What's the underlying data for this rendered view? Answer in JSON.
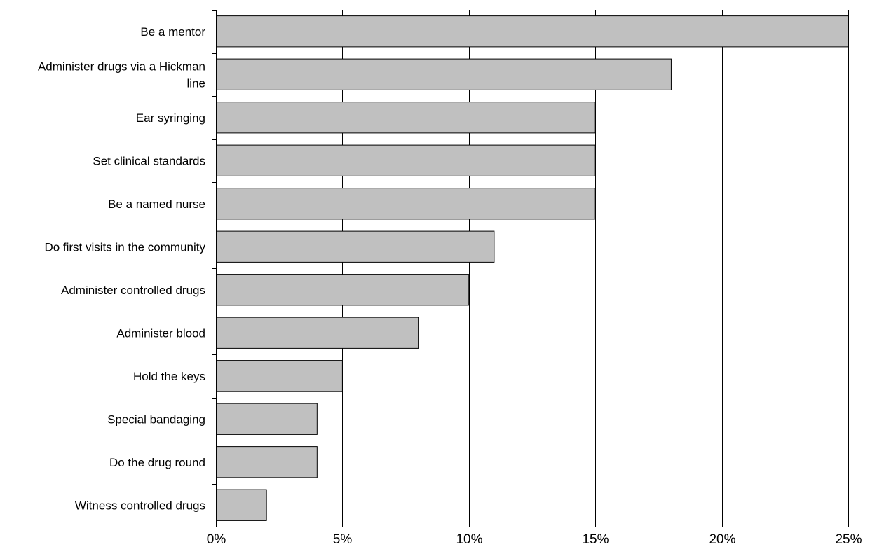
{
  "chart_data": {
    "type": "bar",
    "orientation": "horizontal",
    "categories": [
      [
        "Be a mentor"
      ],
      [
        "Administer drugs via a Hickman",
        "line"
      ],
      [
        "Ear syringing"
      ],
      [
        "Set clinical standards"
      ],
      [
        "Be a named nurse"
      ],
      [
        "Do first visits in the community"
      ],
      [
        "Administer controlled drugs"
      ],
      [
        "Administer blood"
      ],
      [
        "Hold the keys"
      ],
      [
        "Special bandaging"
      ],
      [
        "Do the drug round"
      ],
      [
        "Witness controlled drugs"
      ]
    ],
    "values": [
      25,
      18,
      15,
      15,
      15,
      11,
      10,
      8,
      5,
      4,
      4,
      2
    ],
    "xlim": [
      0,
      25
    ],
    "x_ticks": [
      0,
      5,
      10,
      15,
      20,
      25
    ],
    "x_tick_labels": [
      "0%",
      "5%",
      "10%",
      "15%",
      "20%",
      "25%"
    ],
    "title": "",
    "xlabel": "",
    "ylabel": "",
    "grid": "vertical",
    "legend": "none",
    "bar_color": "#c0c0c0",
    "bar_edge_color": "#000000"
  }
}
